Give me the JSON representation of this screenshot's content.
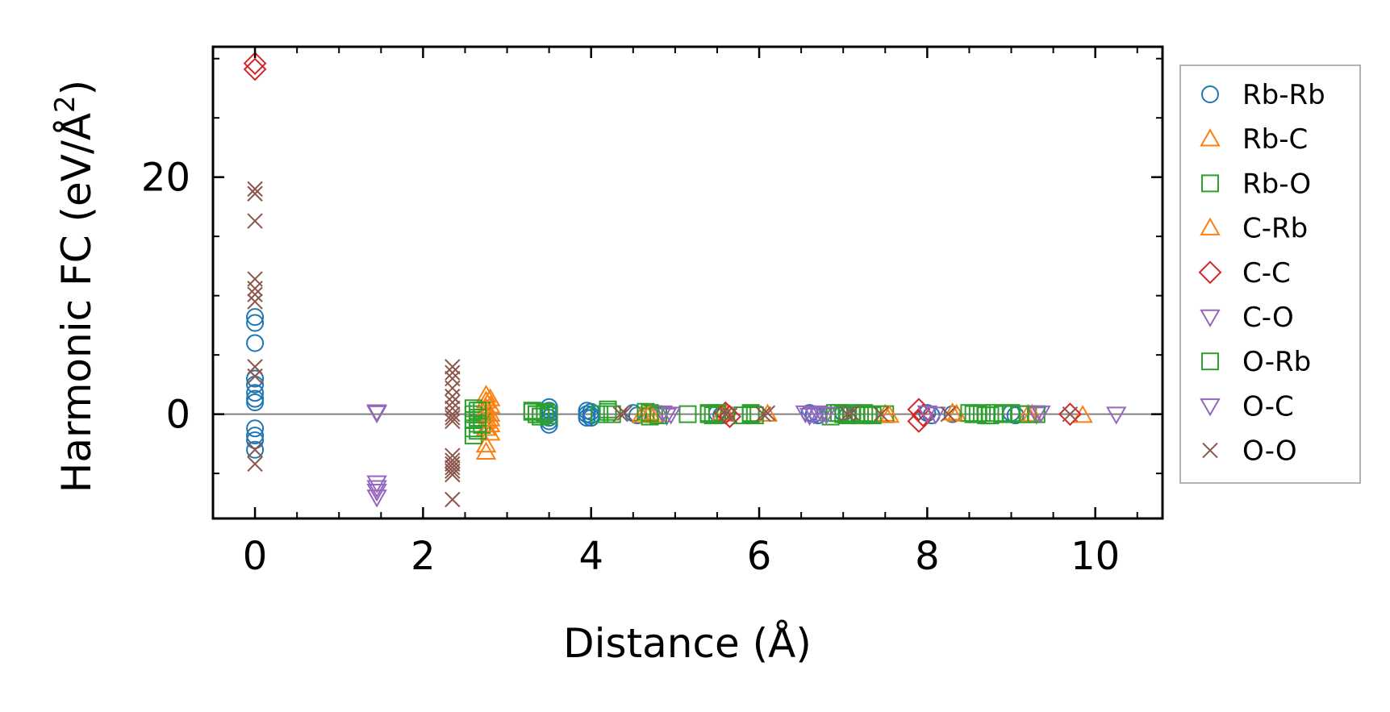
{
  "chart_data": {
    "type": "scatter",
    "xlabel": "Distance (Å)",
    "ylabel_main": "Harmonic FC (eV/Å",
    "ylabel_sup": "2",
    "ylabel_close": ")",
    "xlim": [
      -0.5,
      10.8
    ],
    "ylim": [
      -8.8,
      31
    ],
    "xticks": [
      0,
      2,
      4,
      6,
      8,
      10
    ],
    "xtick_labels": [
      "0",
      "2",
      "4",
      "6",
      "8",
      "10"
    ],
    "yticks": [
      0,
      20
    ],
    "ytick_labels": [
      "0",
      "20"
    ],
    "x_minor_step": 0.5,
    "y_minor_step": 5,
    "zero_line": true,
    "legend_position": "outside-right",
    "series": [
      {
        "name": "Rb-Rb",
        "marker": "circle",
        "color": "#1f77b4",
        "x": [
          0,
          0,
          0,
          0,
          0,
          0,
          0,
          0,
          0,
          0,
          0,
          0,
          3.5,
          3.5,
          3.5,
          3.5,
          3.5,
          3.5,
          3.95,
          3.95,
          3.95,
          4.0,
          4.0,
          4.0,
          4.5,
          4.55,
          5.5,
          5.55,
          6.6,
          6.65,
          6.7,
          7.0,
          7.05,
          8.0,
          8.05,
          8.3,
          9.0,
          9.05
        ],
        "y": [
          8.2,
          7.7,
          6.0,
          3.0,
          2.5,
          1.8,
          1.3,
          1.0,
          -1.2,
          -1.8,
          -2.2,
          -3.0,
          0.6,
          0.3,
          0.0,
          -0.3,
          -0.6,
          -0.9,
          0.3,
          0.0,
          -0.3,
          0.2,
          -0.1,
          -0.3,
          0.1,
          -0.1,
          0.1,
          -0.1,
          0.1,
          0.0,
          -0.1,
          0.1,
          -0.1,
          0.1,
          -0.1,
          0.0,
          0.1,
          -0.1
        ]
      },
      {
        "name": "Rb-C",
        "marker": "triangle-up",
        "color": "#ff7f0e",
        "x": [
          2.75,
          2.75,
          2.75,
          2.75,
          2.75,
          2.75,
          2.75,
          2.75,
          4.6,
          4.65,
          5.55,
          5.6,
          6.1,
          7.5,
          8.35,
          9.2,
          9.85
        ],
        "y": [
          1.6,
          1.1,
          0.5,
          0.0,
          -0.6,
          -1.2,
          -2.6,
          -3.2,
          -0.1,
          0.1,
          0.0,
          0.1,
          0.0,
          0.0,
          0.0,
          0.0,
          -0.1
        ]
      },
      {
        "name": "Rb-O",
        "marker": "square",
        "color": "#2ca02c",
        "x": [
          2.6,
          2.6,
          2.6,
          2.6,
          2.6,
          2.7,
          2.7,
          2.7,
          3.3,
          3.35,
          3.4,
          3.45,
          4.2,
          4.25,
          4.65,
          4.7,
          4.75,
          5.15,
          5.4,
          5.45,
          5.5,
          5.9,
          5.95,
          6.85,
          6.9,
          7.0,
          7.1,
          7.2,
          7.3,
          7.5,
          8.5,
          8.6,
          8.7,
          8.8,
          9.1,
          9.2
        ],
        "y": [
          0.5,
          0.0,
          -0.5,
          -1.2,
          -1.8,
          0.3,
          -0.3,
          -0.9,
          0.2,
          0.0,
          -0.2,
          0.1,
          0.4,
          0.0,
          0.2,
          -0.2,
          0.0,
          0.0,
          0.1,
          -0.1,
          0.0,
          0.1,
          -0.1,
          -0.2,
          0.1,
          0.0,
          0.1,
          -0.1,
          0.0,
          0.0,
          0.1,
          0.0,
          -0.1,
          0.1,
          0.0,
          0.0
        ]
      },
      {
        "name": "C-Rb",
        "marker": "triangle-up",
        "color": "#ff7f0e",
        "x": [
          2.8,
          2.8,
          2.8,
          2.8,
          2.8,
          2.8,
          4.7,
          4.75,
          7.55,
          8.3,
          9.25
        ],
        "y": [
          1.3,
          0.7,
          0.0,
          -0.4,
          -0.9,
          -1.6,
          0.1,
          -0.1,
          -0.1,
          0.1,
          0.0
        ]
      },
      {
        "name": "C-C",
        "marker": "diamond",
        "color": "#d62728",
        "x": [
          0,
          0,
          5.6,
          5.65,
          7.9,
          7.95,
          7.9,
          9.7
        ],
        "y": [
          29.6,
          29.1,
          0.1,
          -0.2,
          0.4,
          -0.1,
          -0.6,
          0.0
        ]
      },
      {
        "name": "C-O",
        "marker": "triangle-down",
        "color": "#9467bd",
        "x": [
          1.45,
          1.45,
          1.45,
          1.45,
          4.85,
          4.9,
          6.55,
          6.6,
          6.75,
          8.0,
          9.3,
          10.25
        ],
        "y": [
          0.2,
          -5.8,
          -6.5,
          -7.0,
          0.1,
          -0.1,
          0.1,
          -0.1,
          0.0,
          0.1,
          0.0,
          0.0
        ]
      },
      {
        "name": "O-Rb",
        "marker": "square",
        "color": "#2ca02c",
        "x": [
          2.65,
          2.65,
          2.65,
          2.65,
          3.3,
          3.35,
          3.4,
          3.45,
          3.5,
          4.1,
          4.2,
          4.7,
          4.8,
          5.4,
          5.5,
          5.8,
          5.9,
          6.95,
          7.05,
          7.15,
          7.25,
          7.35,
          8.55,
          8.65,
          8.75,
          8.9,
          9.0,
          9.3
        ],
        "y": [
          0.3,
          -0.3,
          -0.8,
          -1.4,
          0.3,
          0.0,
          -0.2,
          0.2,
          -0.1,
          0.0,
          0.2,
          0.1,
          -0.1,
          0.0,
          0.1,
          -0.1,
          0.0,
          0.1,
          -0.1,
          0.0,
          0.1,
          -0.1,
          0.0,
          0.1,
          -0.1,
          0.0,
          0.1,
          0.0
        ]
      },
      {
        "name": "O-C",
        "marker": "triangle-down",
        "color": "#9467bd",
        "x": [
          1.45,
          1.45,
          4.95,
          6.65,
          6.7,
          6.8,
          8.1,
          9.35
        ],
        "y": [
          0.1,
          -6.2,
          0.0,
          0.0,
          0.1,
          0.0,
          0.0,
          0.1
        ]
      },
      {
        "name": "O-O",
        "marker": "x",
        "color": "#8c564b",
        "x": [
          0,
          0,
          0,
          0,
          0,
          0,
          0,
          0,
          0,
          0,
          0,
          2.35,
          2.35,
          2.35,
          2.35,
          2.35,
          2.35,
          2.35,
          2.35,
          2.35,
          2.35,
          2.35,
          2.35,
          2.35,
          2.35,
          2.35,
          2.35,
          2.35,
          4.35,
          4.4,
          5.6,
          5.65,
          6.05,
          6.1,
          7.05,
          7.1,
          7.45,
          8.25,
          9.7
        ],
        "y": [
          19.0,
          18.6,
          16.3,
          11.4,
          10.6,
          10.1,
          9.5,
          4.0,
          3.2,
          -3.0,
          -4.2,
          4.0,
          3.5,
          3.0,
          2.2,
          1.5,
          1.0,
          0.5,
          0.0,
          -0.3,
          -0.6,
          -3.5,
          -3.9,
          -4.2,
          -4.5,
          -4.8,
          -5.1,
          -7.2,
          0.0,
          0.1,
          0.0,
          -0.1,
          0.0,
          0.1,
          0.0,
          0.1,
          0.0,
          0.0,
          0.0
        ]
      }
    ]
  }
}
